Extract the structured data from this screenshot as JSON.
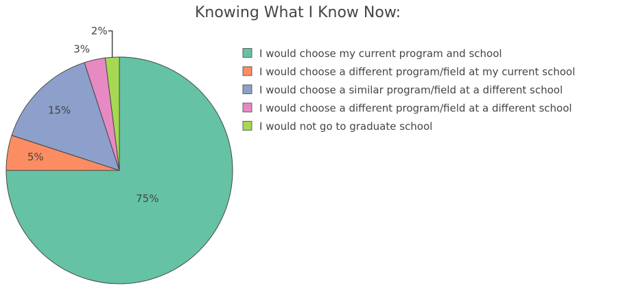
{
  "chart_data": {
    "type": "pie",
    "title": "Knowing What I Know Now:",
    "labels": [
      "I would choose my current program and school",
      "I would choose a different program/field at my current school",
      "I would choose a similar program/field at a different school",
      "I would choose a different program/field at a different school",
      "I would not go to graduate school"
    ],
    "values": [
      75,
      5,
      15,
      3,
      2
    ],
    "value_labels": [
      "75%",
      "5%",
      "15%",
      "3%",
      "2%"
    ],
    "colors": [
      "#66c2a5",
      "#fc8d62",
      "#8da0cb",
      "#e78ac3",
      "#a6d854"
    ],
    "direction": "clockwise",
    "start_angle": "top",
    "legend_position": "right"
  }
}
